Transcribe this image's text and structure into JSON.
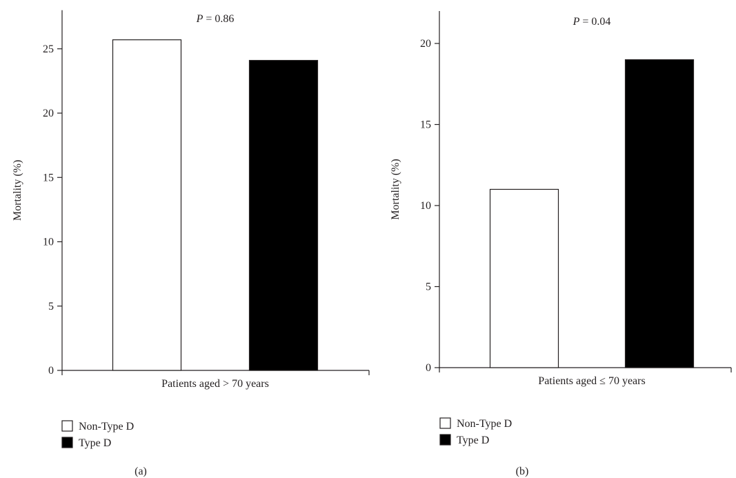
{
  "chart_data": [
    {
      "type": "bar",
      "panel_label": "(a)",
      "annotation": {
        "symbol": "P",
        "text": " = 0.86"
      },
      "ylabel": "Mortality (%)",
      "categories": [
        "Patients aged > 70 years"
      ],
      "series": [
        {
          "name": "Non-Type D",
          "values": [
            25.7
          ],
          "color": "#ffffff"
        },
        {
          "name": "Type D",
          "values": [
            24.1
          ],
          "color": "#000000"
        }
      ],
      "ylim": [
        0,
        28
      ],
      "yticks": [
        0,
        5,
        10,
        15,
        20,
        25
      ],
      "grid": false,
      "legend": {
        "placement": "bottom-left",
        "entries": [
          "Non-Type D",
          "Type D"
        ]
      }
    },
    {
      "type": "bar",
      "panel_label": "(b)",
      "annotation": {
        "symbol": "P",
        "text": " = 0.04"
      },
      "ylabel": "Mortality (%)",
      "categories": [
        "Patients aged ≤ 70 years"
      ],
      "series": [
        {
          "name": "Non-Type D",
          "values": [
            11.0
          ],
          "color": "#ffffff"
        },
        {
          "name": "Type D",
          "values": [
            19.0
          ],
          "color": "#000000"
        }
      ],
      "ylim": [
        0,
        22
      ],
      "yticks": [
        0,
        5,
        10,
        15,
        20
      ],
      "grid": false,
      "legend": {
        "placement": "bottom-left",
        "entries": [
          "Non-Type D",
          "Type D"
        ]
      }
    }
  ]
}
